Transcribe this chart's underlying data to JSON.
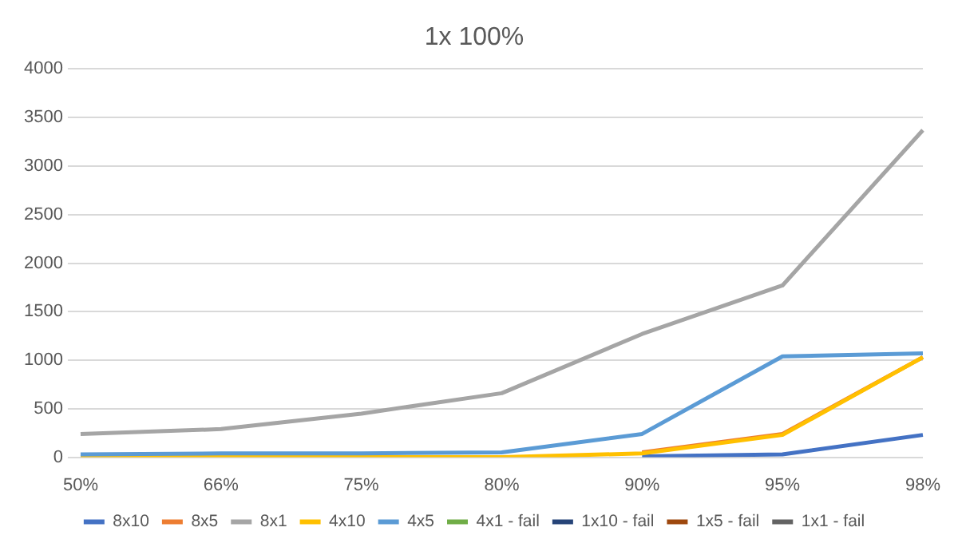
{
  "chart_data": {
    "type": "line",
    "title": "1x 100%",
    "categories": [
      "50%",
      "66%",
      "75%",
      "80%",
      "90%",
      "95%",
      "98%"
    ],
    "series": [
      {
        "name": "8x10",
        "color": "#4472c4",
        "values": [
          null,
          null,
          null,
          null,
          10,
          30,
          230
        ]
      },
      {
        "name": "8x5",
        "color": "#ed7d31",
        "values": [
          null,
          null,
          null,
          null,
          50,
          240,
          1030
        ]
      },
      {
        "name": "8x1",
        "color": "#a5a5a5",
        "values": [
          240,
          290,
          450,
          660,
          1270,
          1770,
          3370
        ]
      },
      {
        "name": "4x10",
        "color": "#ffc000",
        "values": [
          0,
          0,
          0,
          0,
          40,
          230,
          1030
        ]
      },
      {
        "name": "4x5",
        "color": "#5b9bd5",
        "values": [
          30,
          40,
          40,
          50,
          240,
          1040,
          1070
        ]
      },
      {
        "name": "4x1 - fail",
        "color": "#70ad47",
        "values": [
          null,
          null,
          null,
          null,
          null,
          null,
          null
        ]
      },
      {
        "name": "1x10 - fail",
        "color": "#264478",
        "values": [
          null,
          null,
          null,
          null,
          null,
          null,
          null
        ]
      },
      {
        "name": "1x5 - fail",
        "color": "#9e480e",
        "values": [
          null,
          null,
          null,
          null,
          null,
          null,
          null
        ]
      },
      {
        "name": "1x1 - fail",
        "color": "#636363",
        "values": [
          null,
          null,
          null,
          null,
          null,
          null,
          null
        ]
      }
    ],
    "ylim": [
      0,
      4000
    ],
    "yticks": [
      0,
      500,
      1000,
      1500,
      2000,
      2500,
      3000,
      3500,
      4000
    ],
    "grid": "y",
    "legend": "bottom",
    "marker": "none",
    "line_style": "solid"
  }
}
